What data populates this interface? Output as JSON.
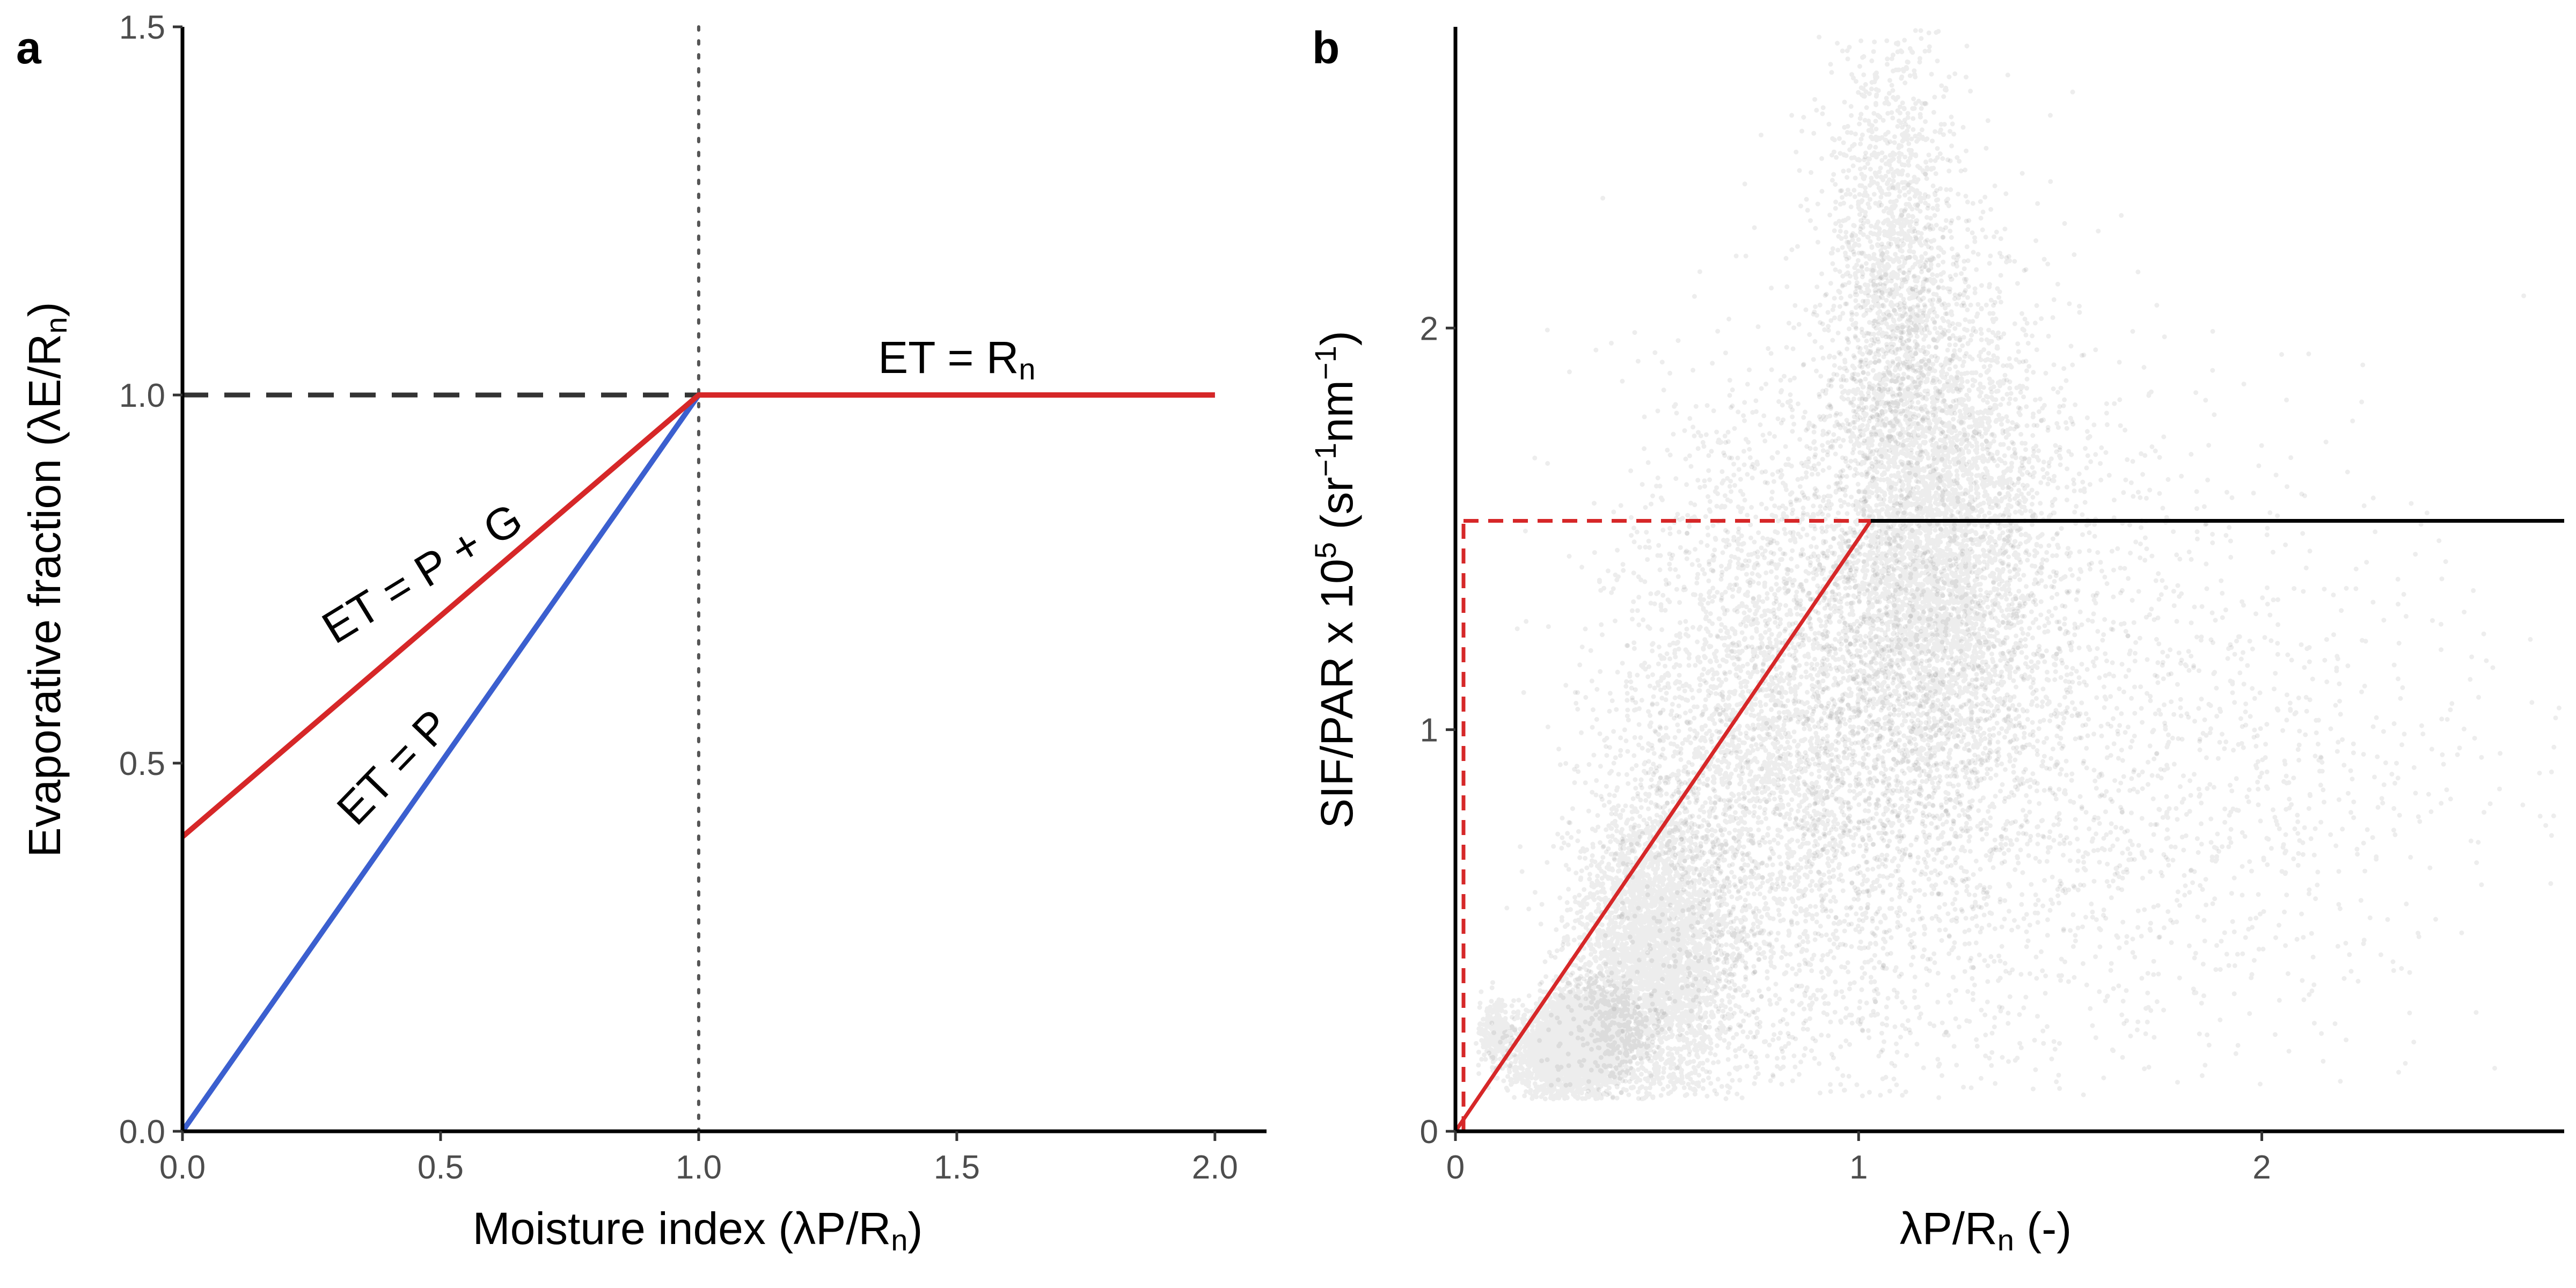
{
  "chart_data": [
    {
      "panel": "a",
      "type": "line",
      "xlabel": "Moisture index (λP/R",
      "xlabel_sub": "n",
      "xlabel_end": ")",
      "ylabel": "Evaporative fraction (λE/R",
      "ylabel_sub": "n",
      "ylabel_end": ")",
      "xlim": [
        0,
        2.1
      ],
      "ylim": [
        0,
        1.5
      ],
      "xticks": [
        0.0,
        0.5,
        1.0,
        1.5,
        2.0
      ],
      "xtick_labels": [
        "0.0",
        "0.5",
        "1.0",
        "1.5",
        "2.0"
      ],
      "yticks": [
        0.0,
        0.5,
        1.0,
        1.5
      ],
      "ytick_labels": [
        "0.0",
        "0.5",
        "1.0",
        "1.5"
      ],
      "grid": false,
      "series": [
        {
          "name": "ET = P + G",
          "color": "#d62728",
          "style": "solid",
          "x": [
            0,
            1,
            2
          ],
          "y": [
            0.4,
            1.0,
            1.0
          ]
        },
        {
          "name": "ET = P",
          "color": "#3b5fcf",
          "style": "solid",
          "x": [
            0,
            1,
            2
          ],
          "y": [
            0.0,
            1.0,
            1.0
          ]
        }
      ],
      "reference_lines": [
        {
          "kind": "horizontal",
          "value": 1.0,
          "x_range": [
            0,
            1
          ],
          "style": "dashed",
          "color": "#333333"
        },
        {
          "kind": "vertical",
          "value": 1.0,
          "style": "dotted",
          "color": "#555555"
        }
      ],
      "annotations": [
        {
          "text": "ET = P + G",
          "x": 0.48,
          "y": 0.74,
          "angle_deg": -31.5
        },
        {
          "text": "ET = P",
          "x": 0.43,
          "y": 0.48,
          "angle_deg": -46
        },
        {
          "text": "ET = R",
          "sub": "n",
          "x": 1.5,
          "y": 1.03,
          "angle_deg": 0
        }
      ]
    },
    {
      "panel": "b",
      "type": "scatter",
      "xlabel": "λP/R",
      "xlabel_sub": "n",
      "xlabel_end": " (-)",
      "ylabel_parts": [
        "SIF/PAR x 10",
        "5",
        " (sr",
        "−1",
        "nm",
        "−1",
        ")"
      ],
      "xlim": [
        0,
        2.75
      ],
      "ylim": [
        0,
        2.75
      ],
      "xticks": [
        0,
        1,
        2
      ],
      "xtick_labels": [
        "0",
        "1",
        "2"
      ],
      "yticks": [
        0,
        1,
        2
      ],
      "ytick_labels": [
        "0",
        "1",
        "2"
      ],
      "grid": false,
      "point_color": "#000000",
      "point_opacity": 0.07,
      "clusters": [
        {
          "cx": 0.3,
          "cy": 0.22,
          "sx": 0.07,
          "sy": 0.06,
          "n": 4200,
          "rot": 0.3
        },
        {
          "cx": 0.5,
          "cy": 0.45,
          "sx": 0.14,
          "sy": 0.18,
          "n": 3800,
          "rot": 0.9
        },
        {
          "cx": 0.78,
          "cy": 0.95,
          "sx": 0.2,
          "sy": 0.38,
          "n": 3200,
          "rot": 0.5
        },
        {
          "cx": 1.18,
          "cy": 1.45,
          "sx": 0.14,
          "sy": 0.35,
          "n": 5000,
          "rot": 0.0
        },
        {
          "cx": 1.08,
          "cy": 2.2,
          "sx": 0.08,
          "sy": 0.3,
          "n": 1400,
          "rot": 0.0
        },
        {
          "cx": 1.2,
          "cy": 1.0,
          "sx": 0.32,
          "sy": 0.5,
          "n": 2400,
          "rot": 0.0
        },
        {
          "cx": 1.9,
          "cy": 0.9,
          "sx": 0.38,
          "sy": 0.35,
          "n": 900,
          "rot": 0.0
        },
        {
          "cx": 0.1,
          "cy": 0.25,
          "sx": 0.02,
          "sy": 0.04,
          "n": 250,
          "rot": 0.0
        }
      ],
      "fit": {
        "breakpoint_x": 1.03,
        "plateau_y": 1.52,
        "rising": {
          "color": "#d62728",
          "x": [
            0,
            1.03
          ],
          "y": [
            0,
            1.52
          ]
        },
        "plateau": {
          "color": "#000000",
          "x": [
            1.03,
            2.75
          ],
          "y": [
            1.52,
            1.52
          ]
        },
        "guide_horizontal": {
          "color": "#d62728",
          "style": "dashed",
          "x": [
            0.02,
            1.03
          ],
          "y": 1.52
        },
        "guide_vertical": {
          "color": "#d62728",
          "style": "dashed",
          "x": 0.02,
          "y": [
            0,
            1.52
          ]
        }
      }
    }
  ]
}
